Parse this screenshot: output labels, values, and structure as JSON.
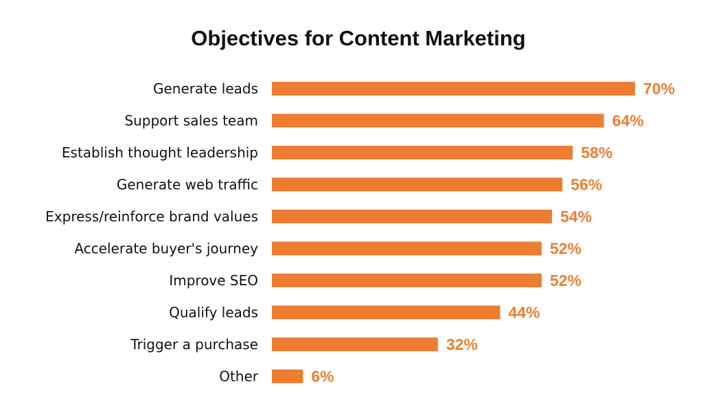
{
  "colors": {
    "bar": "#ED7D31",
    "value_label": "#ED7D31",
    "title": "#111111",
    "category_label": "#111111"
  },
  "chart_data": {
    "type": "bar",
    "orientation": "horizontal",
    "title": "Objectives for Content Marketing",
    "xlabel": "",
    "ylabel": "",
    "unit": "%",
    "xlim": [
      0,
      70
    ],
    "grid": false,
    "legend": "none",
    "categories": [
      "Generate leads",
      "Support sales team",
      "Establish thought leadership",
      "Generate web traffic",
      "Express/reinforce brand values",
      "Accelerate buyer's journey",
      "Improve SEO",
      "Qualify leads",
      "Trigger a purchase",
      "Other"
    ],
    "values": [
      70,
      64,
      58,
      56,
      54,
      52,
      52,
      44,
      32,
      6
    ],
    "value_labels": [
      "70%",
      "64%",
      "58%",
      "56%",
      "54%",
      "52%",
      "52%",
      "44%",
      "32%",
      "6%"
    ]
  }
}
